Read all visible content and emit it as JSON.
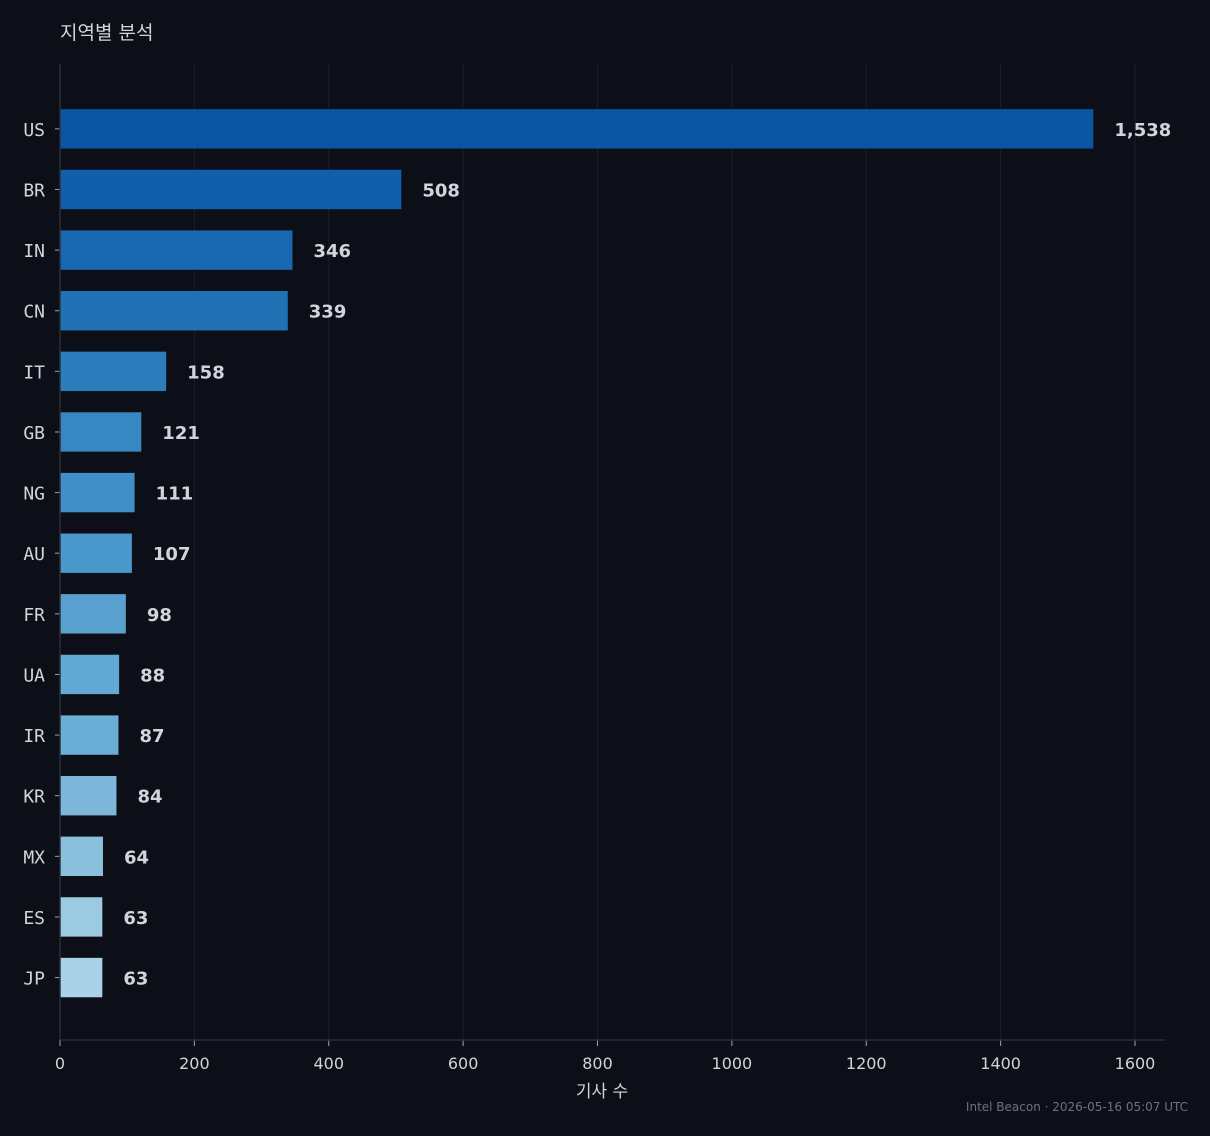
{
  "chart_data": {
    "type": "bar",
    "orientation": "horizontal",
    "title": "지역별 분석",
    "xlabel": "기사 수",
    "ylabel": "",
    "categories": [
      "US",
      "BR",
      "IN",
      "CN",
      "IT",
      "GB",
      "NG",
      "AU",
      "FR",
      "UA",
      "IR",
      "KR",
      "MX",
      "ES",
      "JP"
    ],
    "values": [
      1538,
      508,
      346,
      339,
      158,
      121,
      111,
      107,
      98,
      88,
      87,
      84,
      64,
      63,
      63
    ],
    "value_labels": [
      "1,538",
      "508",
      "346",
      "339",
      "158",
      "121",
      "111",
      "107",
      "98",
      "88",
      "87",
      "84",
      "64",
      "63",
      "63"
    ],
    "xlim": [
      0,
      1600
    ],
    "xticks": [
      0,
      200,
      400,
      600,
      800,
      1000,
      1200,
      1400,
      1600
    ],
    "grid": "vertical",
    "colors": [
      "#0b56a3",
      "#115fac",
      "#1967b0",
      "#2171b5",
      "#2c7dbc",
      "#3787c2",
      "#408fc8",
      "#4a98cb",
      "#58a1cf",
      "#62a9d3",
      "#6aaed6",
      "#7db8da",
      "#8bc0dd",
      "#9bcae1",
      "#a9d1e7"
    ]
  },
  "footer": "Intel Beacon · 2026-05-16 05:07 UTC"
}
